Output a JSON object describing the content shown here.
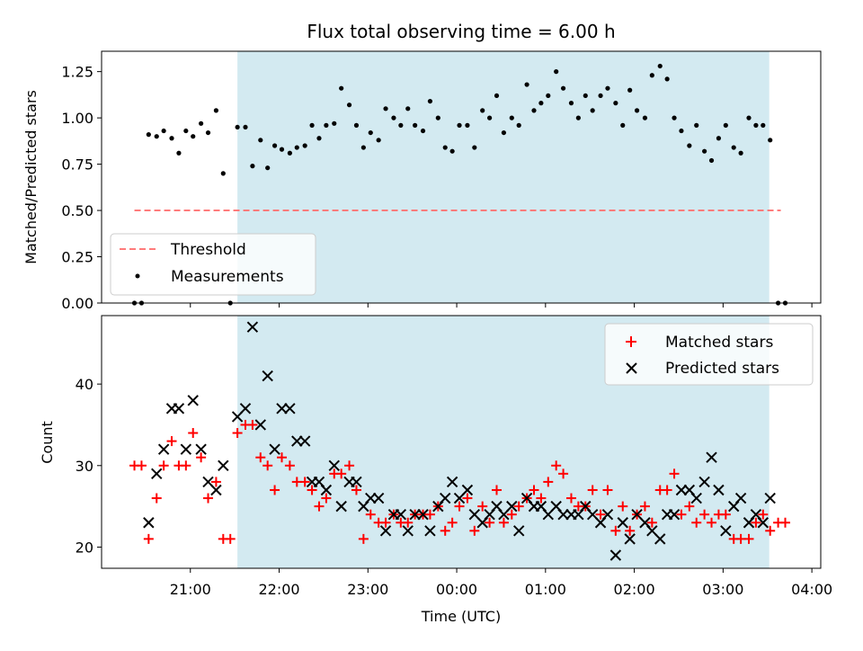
{
  "chart_data": [
    {
      "type": "scatter",
      "title": "Flux total observing time = 6.00 h",
      "xlabel": "",
      "ylabel": "Matched/Predicted stars",
      "ylim": [
        0,
        1.36
      ],
      "yticks": [
        0,
        0.25,
        0.5,
        0.75,
        1.0,
        1.25
      ],
      "ytick_labels": [
        "0.00",
        "0.25",
        "0.50",
        "0.75",
        "1.00",
        "1.25"
      ],
      "xlim_hours": [
        20.0,
        28.1
      ],
      "threshold": {
        "name": "Threshold",
        "y": 0.5,
        "x_range_hours": [
          20.37,
          27.65
        ],
        "color": "#ff7b7b"
      },
      "shaded_span_hours": [
        21.53,
        27.52
      ],
      "shade_color": "#d3eaf1",
      "legend": {
        "position": "lower-left",
        "entries": [
          "Threshold",
          "Measurements"
        ]
      },
      "series": [
        {
          "name": "Measurements",
          "color": "#000000",
          "x_hours": [
            20.37,
            20.45,
            20.53,
            20.62,
            20.7,
            20.79,
            20.87,
            20.95,
            21.03,
            21.12,
            21.2,
            21.29,
            21.37,
            21.45,
            21.53,
            21.62,
            21.7,
            21.79,
            21.87,
            21.95,
            22.03,
            22.12,
            22.2,
            22.29,
            22.37,
            22.45,
            22.53,
            22.62,
            22.7,
            22.79,
            22.87,
            22.95,
            23.03,
            23.12,
            23.2,
            23.29,
            23.37,
            23.45,
            23.53,
            23.62,
            23.7,
            23.79,
            23.87,
            23.95,
            24.03,
            24.12,
            24.2,
            24.29,
            24.37,
            24.45,
            24.53,
            24.62,
            24.7,
            24.79,
            24.87,
            24.95,
            25.03,
            25.12,
            25.2,
            25.29,
            25.37,
            25.45,
            25.53,
            25.62,
            25.7,
            25.79,
            25.87,
            25.95,
            26.03,
            26.12,
            26.2,
            26.29,
            26.37,
            26.45,
            26.53,
            26.62,
            26.7,
            26.79,
            26.87,
            26.95,
            27.03,
            27.12,
            27.2,
            27.29,
            27.37,
            27.45,
            27.53,
            27.62,
            27.7
          ],
          "y": [
            0.0,
            0.0,
            0.91,
            0.9,
            0.93,
            0.89,
            0.81,
            0.93,
            0.9,
            0.97,
            0.92,
            1.04,
            0.7,
            0.0,
            0.95,
            0.95,
            0.74,
            0.88,
            0.73,
            0.85,
            0.83,
            0.81,
            0.84,
            0.85,
            0.96,
            0.89,
            0.96,
            0.97,
            1.16,
            1.07,
            0.96,
            0.84,
            0.92,
            0.88,
            1.05,
            1.0,
            0.96,
            1.05,
            0.96,
            0.93,
            1.09,
            1.0,
            0.84,
            0.82,
            0.96,
            0.96,
            0.84,
            1.04,
            1.0,
            1.12,
            0.92,
            1.0,
            0.96,
            1.18,
            1.04,
            1.08,
            1.12,
            1.25,
            1.16,
            1.08,
            1.0,
            1.12,
            1.04,
            1.12,
            1.16,
            1.08,
            0.96,
            1.15,
            1.04,
            1.0,
            1.23,
            1.28,
            1.21,
            1.0,
            0.93,
            0.85,
            0.96,
            0.82,
            0.77,
            0.89,
            0.96,
            0.84,
            0.81,
            1.0,
            0.96,
            0.96,
            0.88,
            0.0,
            0.0
          ]
        }
      ]
    },
    {
      "type": "scatter",
      "title": "",
      "xlabel": "Time (UTC)",
      "ylabel": "Count",
      "ylim": [
        17.4,
        48.4
      ],
      "yticks": [
        20,
        30,
        40
      ],
      "ytick_labels": [
        "20",
        "30",
        "40"
      ],
      "xlim_hours": [
        20.0,
        28.1
      ],
      "xticks_hours": [
        21,
        22,
        23,
        24,
        25,
        26,
        27,
        28
      ],
      "xtick_labels": [
        "21:00",
        "22:00",
        "23:00",
        "00:00",
        "01:00",
        "02:00",
        "03:00",
        "04:00"
      ],
      "shaded_span_hours": [
        21.53,
        27.52
      ],
      "legend": {
        "position": "upper-right",
        "entries": [
          "Matched stars",
          "Predicted stars"
        ]
      },
      "series": [
        {
          "name": "Matched stars",
          "marker": "+",
          "color": "#ff0000",
          "x_hours": [
            20.37,
            20.45,
            20.53,
            20.62,
            20.7,
            20.79,
            20.87,
            20.95,
            21.03,
            21.12,
            21.2,
            21.29,
            21.37,
            21.45,
            21.53,
            21.62,
            21.7,
            21.79,
            21.87,
            21.95,
            22.03,
            22.12,
            22.2,
            22.29,
            22.37,
            22.45,
            22.53,
            22.62,
            22.7,
            22.79,
            22.87,
            22.95,
            23.03,
            23.12,
            23.2,
            23.29,
            23.37,
            23.45,
            23.53,
            23.62,
            23.7,
            23.79,
            23.87,
            23.95,
            24.03,
            24.12,
            24.2,
            24.29,
            24.37,
            24.45,
            24.53,
            24.62,
            24.7,
            24.79,
            24.87,
            24.95,
            25.03,
            25.12,
            25.2,
            25.29,
            25.37,
            25.45,
            25.53,
            25.62,
            25.7,
            25.79,
            25.87,
            25.95,
            26.03,
            26.12,
            26.2,
            26.29,
            26.37,
            26.45,
            26.53,
            26.62,
            26.7,
            26.79,
            26.87,
            26.95,
            27.03,
            27.12,
            27.2,
            27.29,
            27.37,
            27.45,
            27.53,
            27.62,
            27.7
          ],
          "y": [
            30,
            30,
            21,
            26,
            30,
            33,
            30,
            30,
            34,
            31,
            26,
            28,
            21,
            21,
            34,
            35,
            35,
            31,
            30,
            27,
            31,
            30,
            28,
            28,
            27,
            25,
            26,
            29,
            29,
            30,
            27,
            21,
            24,
            23,
            23,
            24,
            23,
            23,
            24,
            24,
            24,
            25,
            22,
            23,
            25,
            26,
            22,
            25,
            23,
            27,
            23,
            24,
            25,
            26,
            27,
            26,
            28,
            30,
            29,
            26,
            25,
            25,
            27,
            24,
            27,
            22,
            25,
            22,
            24,
            25,
            23,
            27,
            27,
            29,
            24,
            25,
            23,
            24,
            23,
            24,
            24,
            21,
            21,
            21,
            23,
            24,
            22,
            23,
            23
          ]
        },
        {
          "name": "Predicted stars",
          "marker": "x",
          "color": "#000000",
          "x_hours": [
            20.53,
            20.62,
            20.7,
            20.79,
            20.87,
            20.95,
            21.03,
            21.12,
            21.2,
            21.29,
            21.37,
            21.53,
            21.62,
            21.7,
            21.79,
            21.87,
            21.95,
            22.03,
            22.12,
            22.2,
            22.29,
            22.37,
            22.45,
            22.53,
            22.62,
            22.7,
            22.79,
            22.87,
            22.95,
            23.03,
            23.12,
            23.2,
            23.29,
            23.37,
            23.45,
            23.53,
            23.62,
            23.7,
            23.79,
            23.87,
            23.95,
            24.03,
            24.12,
            24.2,
            24.29,
            24.37,
            24.45,
            24.53,
            24.62,
            24.7,
            24.79,
            24.87,
            24.95,
            25.03,
            25.12,
            25.2,
            25.29,
            25.37,
            25.45,
            25.53,
            25.62,
            25.7,
            25.79,
            25.87,
            25.95,
            26.03,
            26.12,
            26.2,
            26.29,
            26.37,
            26.45,
            26.53,
            26.62,
            26.7,
            26.79,
            26.87,
            26.95,
            27.03,
            27.12,
            27.2,
            27.29,
            27.37,
            27.45,
            27.53
          ],
          "y": [
            23,
            29,
            32,
            37,
            37,
            32,
            38,
            32,
            28,
            27,
            30,
            36,
            37,
            47,
            35,
            41,
            32,
            37,
            37,
            33,
            33,
            28,
            28,
            27,
            30,
            25,
            28,
            28,
            25,
            26,
            26,
            22,
            24,
            24,
            22,
            24,
            24,
            22,
            25,
            26,
            28,
            26,
            27,
            24,
            23,
            24,
            25,
            24,
            25,
            22,
            26,
            25,
            25,
            24,
            25,
            24,
            24,
            24,
            25,
            24,
            23,
            24,
            19,
            23,
            21,
            24,
            23,
            22,
            21,
            24,
            24,
            27,
            27,
            26,
            28,
            31,
            27,
            22,
            25,
            26,
            23,
            24,
            23,
            26
          ]
        }
      ]
    }
  ]
}
